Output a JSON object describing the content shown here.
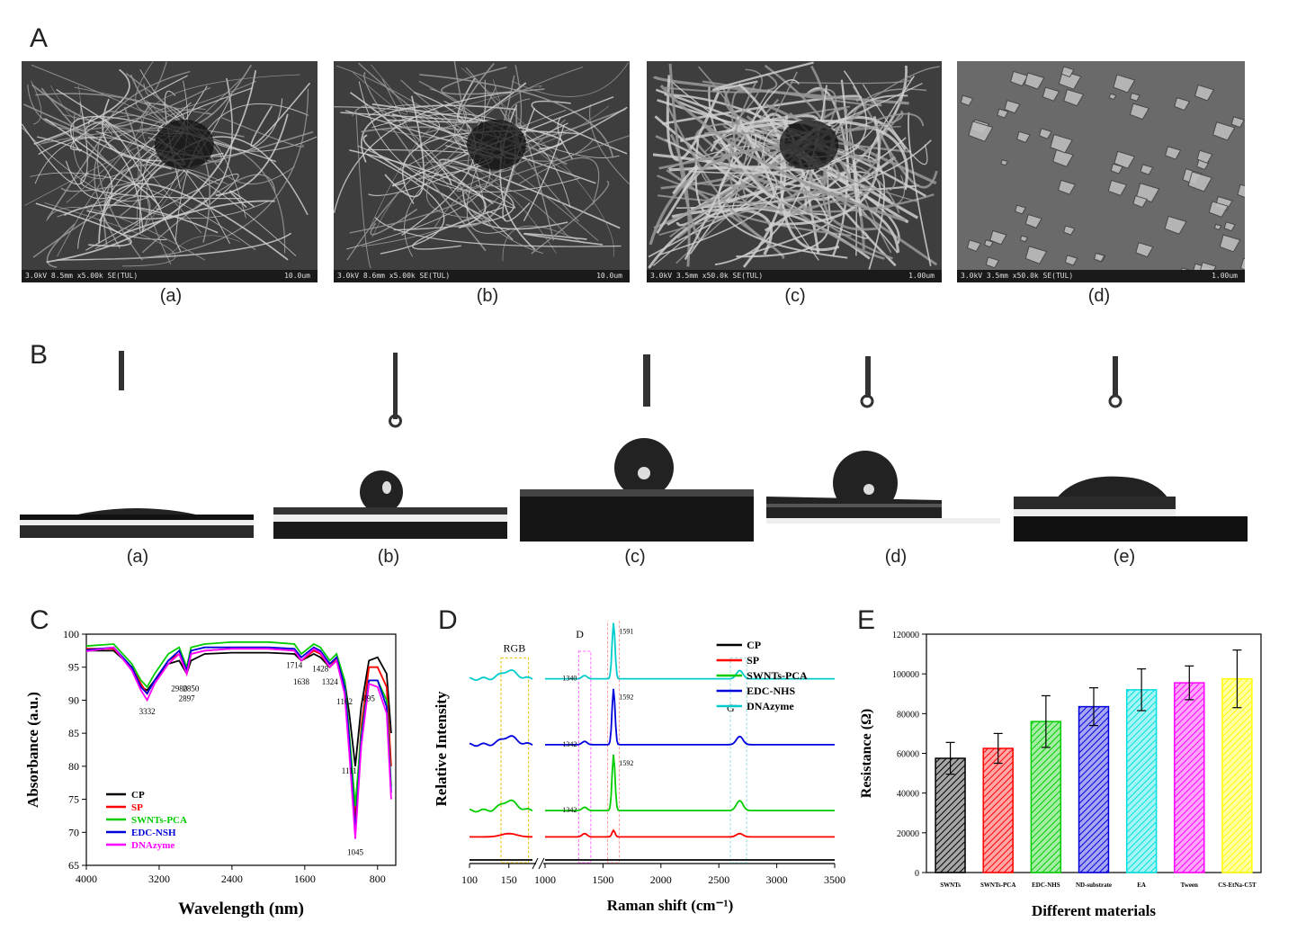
{
  "panelA": {
    "letter": "A",
    "images": [
      {
        "caption": "(a)",
        "info": "3.0kV 8.5mm x5.00k SE(TUL)",
        "scale": "10.0um"
      },
      {
        "caption": "(b)",
        "info": "3.0kV 8.6mm x5.00k SE(TUL)",
        "scale": "10.0um"
      },
      {
        "caption": "(c)",
        "info": "3.0kV 3.5mm x50.0k SE(TUL)",
        "scale": "1.00um"
      },
      {
        "caption": "(d)",
        "info": "3.0kV 3.5mm x50.0k SE(TUL)",
        "scale": "1.00um"
      }
    ]
  },
  "panelB": {
    "letter": "B",
    "images": [
      {
        "caption": "(a)"
      },
      {
        "caption": "(b)"
      },
      {
        "caption": "(c)"
      },
      {
        "caption": "(d)"
      },
      {
        "caption": "(e)"
      }
    ]
  },
  "colors": {
    "CP": "#000000",
    "SP": "#ff0000",
    "SWNTs-PCA": "#00cc00",
    "EDC": "#0000dd",
    "DNAzyme": "#ff00ff",
    "cyan": "#00cccc",
    "yellow": "#ffff00"
  },
  "chart_data": [
    {
      "panel": "C",
      "type": "line",
      "xlabel": "Wavelength (nm)",
      "ylabel": "Absorbance (a.u.)",
      "xlim": [
        4000,
        600
      ],
      "ylim": [
        65,
        100
      ],
      "xticks": [
        "4000",
        "3200",
        "2400",
        "1600",
        "800"
      ],
      "yticks": [
        "65",
        "70",
        "75",
        "80",
        "85",
        "90",
        "95",
        "100"
      ],
      "legend": [
        "CP",
        "SP",
        "SWNTs-PCA",
        "EDC-NSH",
        "DNAzyme"
      ],
      "annotations": [
        {
          "text": "3332",
          "x": 3332,
          "y": 89.5
        },
        {
          "text": "2980",
          "x": 2980,
          "y": 93.0
        },
        {
          "text": "2897",
          "x": 2897,
          "y": 91.5
        },
        {
          "text": "2850",
          "x": 2850,
          "y": 93.0
        },
        {
          "text": "1714",
          "x": 1714,
          "y": 96.5
        },
        {
          "text": "1638",
          "x": 1638,
          "y": 94.0
        },
        {
          "text": "1428",
          "x": 1428,
          "y": 96.0
        },
        {
          "text": "1324",
          "x": 1324,
          "y": 94.0
        },
        {
          "text": "1162",
          "x": 1162,
          "y": 91.0
        },
        {
          "text": "895",
          "x": 895,
          "y": 91.5
        },
        {
          "text": "1111",
          "x": 1111,
          "y": 80.5
        },
        {
          "text": "1045",
          "x": 1045,
          "y": 68.5
        }
      ],
      "series": [
        {
          "name": "CP",
          "x": [
            4000,
            3700,
            3500,
            3400,
            3332,
            3250,
            3100,
            2980,
            2897,
            2850,
            2700,
            2400,
            2000,
            1714,
            1638,
            1500,
            1428,
            1324,
            1250,
            1162,
            1111,
            1045,
            980,
            895,
            800,
            700,
            650
          ],
          "y": [
            97.5,
            97.5,
            95,
            92,
            91.5,
            93,
            95.5,
            96,
            94,
            96,
            97,
            97.2,
            97.2,
            97,
            96,
            97,
            96.5,
            95,
            96,
            93,
            88,
            80,
            89,
            96,
            96.5,
            94,
            85
          ]
        },
        {
          "name": "SP",
          "x": [
            4000,
            3700,
            3500,
            3400,
            3332,
            3250,
            3100,
            2980,
            2897,
            2850,
            2700,
            2400,
            2000,
            1714,
            1638,
            1500,
            1428,
            1324,
            1250,
            1162,
            1111,
            1045,
            980,
            895,
            800,
            700,
            650
          ],
          "y": [
            97.8,
            97.8,
            95,
            92.5,
            91,
            93,
            96,
            97,
            94,
            97,
            97.5,
            97.8,
            97.8,
            97.5,
            96,
            97.5,
            97,
            95,
            96.5,
            92,
            84,
            72,
            86,
            95,
            95,
            92,
            80
          ]
        },
        {
          "name": "SWNTs-PCA",
          "x": [
            4000,
            3700,
            3500,
            3400,
            3332,
            3250,
            3100,
            2980,
            2897,
            2850,
            2700,
            2400,
            2000,
            1714,
            1638,
            1500,
            1428,
            1324,
            1250,
            1162,
            1111,
            1045,
            980,
            895,
            800,
            700,
            650
          ],
          "y": [
            98.2,
            98.5,
            95.5,
            93,
            92,
            94,
            97,
            98,
            95,
            98,
            98.5,
            98.8,
            98.8,
            98.5,
            97,
            98.5,
            98,
            96,
            97,
            93,
            85,
            74,
            85,
            93,
            93,
            90,
            77
          ]
        },
        {
          "name": "EDC-NSH",
          "x": [
            4000,
            3700,
            3500,
            3400,
            3332,
            3250,
            3100,
            2980,
            2897,
            2850,
            2700,
            2400,
            2000,
            1714,
            1638,
            1500,
            1428,
            1324,
            1250,
            1162,
            1111,
            1045,
            980,
            895,
            800,
            700,
            650
          ],
          "y": [
            97.6,
            98,
            95,
            92,
            91,
            93,
            96,
            97.5,
            94.5,
            97.5,
            98,
            98,
            98,
            97.8,
            96.5,
            98,
            97.5,
            95.5,
            96.5,
            92,
            84,
            70,
            84,
            93,
            93,
            89,
            76
          ]
        },
        {
          "name": "DNAzyme",
          "x": [
            4000,
            3700,
            3500,
            3400,
            3332,
            3250,
            3100,
            2980,
            2897,
            2850,
            2700,
            2400,
            2000,
            1714,
            1638,
            1500,
            1428,
            1324,
            1250,
            1162,
            1111,
            1045,
            980,
            895,
            800,
            700,
            650
          ],
          "y": [
            97.4,
            98,
            94.5,
            91.5,
            90,
            92.5,
            95.5,
            97,
            94,
            97,
            97.5,
            97.8,
            97.8,
            97.5,
            96,
            97.8,
            97.2,
            95,
            96,
            91,
            82,
            69,
            83,
            92.5,
            92,
            88,
            75
          ]
        }
      ]
    },
    {
      "panel": "D",
      "type": "line",
      "xlabel": "Raman shift (cm⁻¹)",
      "ylabel": "Relative Intensity",
      "xticks": [
        "100",
        "150",
        "1000",
        "1500",
        "2000",
        "2500",
        "3000",
        "3500"
      ],
      "legend": [
        "CP",
        "SP",
        "SWNTs-PCA",
        "EDC-NHS",
        "DNAzyme"
      ],
      "region_labels": [
        "RGB",
        "D",
        "G",
        "G'"
      ],
      "peak_labels": [
        {
          "text": "1591",
          "series": "DNAzyme"
        },
        {
          "text": "1340",
          "series": "DNAzyme"
        },
        {
          "text": "1592",
          "series": "EDC-NHS"
        },
        {
          "text": "1342",
          "series": "EDC-NHS"
        },
        {
          "text": "1592",
          "series": "SWNTs-PCA"
        },
        {
          "text": "1342",
          "series": "SWNTs-PCA"
        }
      ],
      "series": [
        {
          "name": "CP",
          "baseline": 0.0,
          "rbm": 0,
          "d": 0,
          "g": 0,
          "g2": 0
        },
        {
          "name": "SP",
          "baseline": 0.07,
          "rbm": 0.01,
          "d": 0.01,
          "g": 0.02,
          "g2": 0.01
        },
        {
          "name": "SWNTs-PCA",
          "baseline": 0.15,
          "rbm": 0.03,
          "d": 0.01,
          "g": 0.17,
          "g2": 0.03
        },
        {
          "name": "EDC-NHS",
          "baseline": 0.35,
          "rbm": 0.025,
          "d": 0.01,
          "g": 0.17,
          "g2": 0.025
        },
        {
          "name": "DNAzyme",
          "baseline": 0.55,
          "rbm": 0.025,
          "d": 0.01,
          "g": 0.17,
          "g2": 0.025
        }
      ]
    },
    {
      "panel": "E",
      "type": "bar",
      "xlabel": "Different materials",
      "ylabel": "Resistance (Ω)",
      "ylim": [
        0,
        120000
      ],
      "yticks": [
        "0",
        "20000",
        "40000",
        "60000",
        "80000",
        "100000",
        "120000"
      ],
      "categories": [
        "SWNTs",
        "SWNTs-PCA",
        "EDC-NHS",
        "ND-substrate",
        "EA",
        "Tween",
        "CS-EtNa-C5T"
      ],
      "values": [
        57500,
        62500,
        76000,
        83500,
        92000,
        95500,
        97500
      ],
      "errors": [
        8000,
        7500,
        13000,
        9500,
        10500,
        8500,
        14500
      ],
      "bar_colors": [
        "#000000",
        "#ff0000",
        "#00cc00",
        "#0000dd",
        "#00e0e0",
        "#ff00ff",
        "#ffff00"
      ]
    }
  ],
  "panel_letters": {
    "C": "C",
    "D": "D",
    "E": "E"
  }
}
